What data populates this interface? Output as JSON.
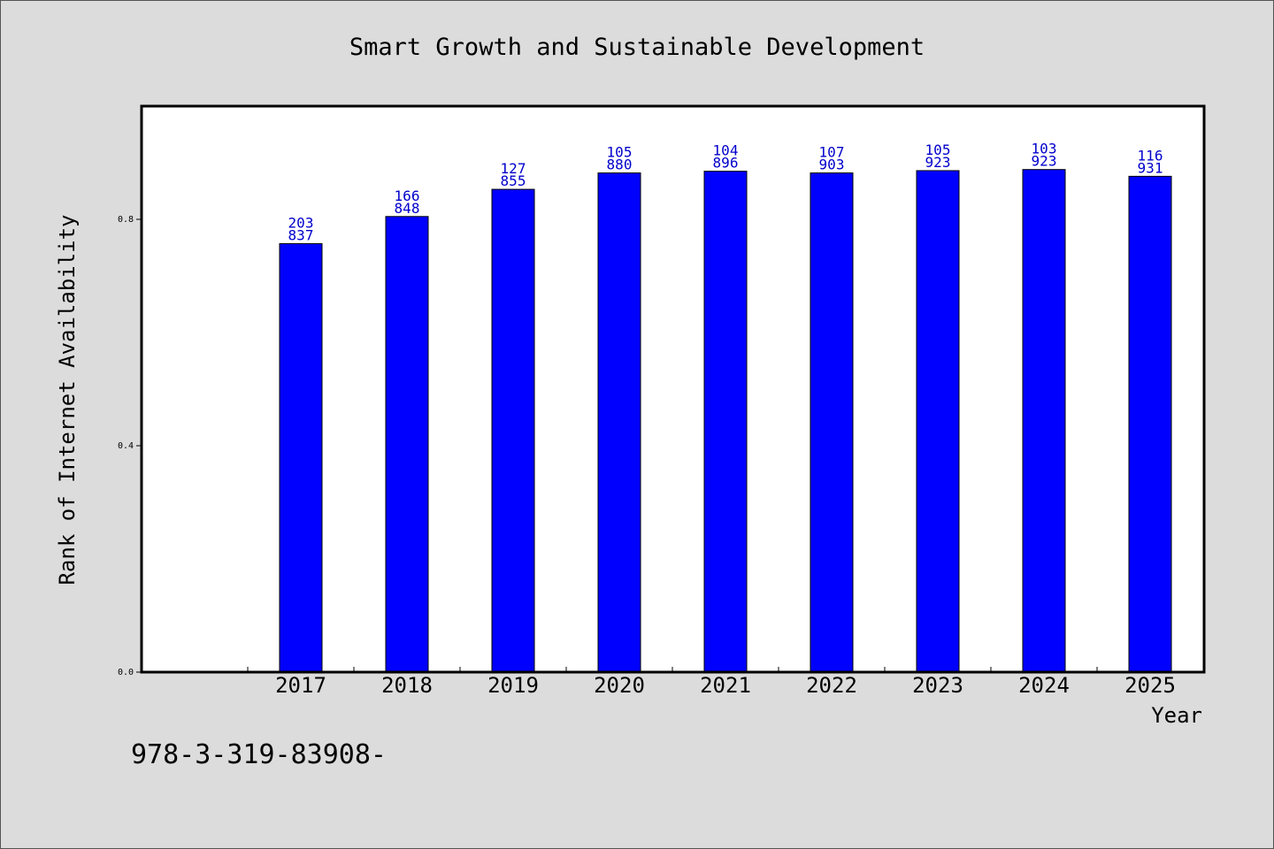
{
  "chart_data": {
    "type": "bar",
    "title": "Smart Growth and Sustainable Development",
    "xlabel": "Year",
    "ylabel": "Rank of Internet Availability",
    "categories": [
      "2017",
      "2018",
      "2019",
      "2020",
      "2021",
      "2022",
      "2023",
      "2024",
      "2025"
    ],
    "values": [
      0.757,
      0.805,
      0.853,
      0.882,
      0.885,
      0.882,
      0.886,
      0.888,
      0.876
    ],
    "bar_labels": [
      [
        "203",
        "837"
      ],
      [
        "166",
        "848"
      ],
      [
        "127",
        "855"
      ],
      [
        "105",
        "880"
      ],
      [
        "104",
        "896"
      ],
      [
        "107",
        "903"
      ],
      [
        "105",
        "923"
      ],
      [
        "103",
        "923"
      ],
      [
        "116",
        "931"
      ]
    ],
    "yticks": [
      0.0,
      0.4,
      0.8
    ],
    "ytick_labels": [
      "0.0",
      "0.4",
      "0.8"
    ],
    "ylim": [
      0,
      1.0
    ],
    "grid": false,
    "bar_color": "#0000ff",
    "label_color": "#0000cc"
  },
  "footnote": "978-3-319-83908-"
}
